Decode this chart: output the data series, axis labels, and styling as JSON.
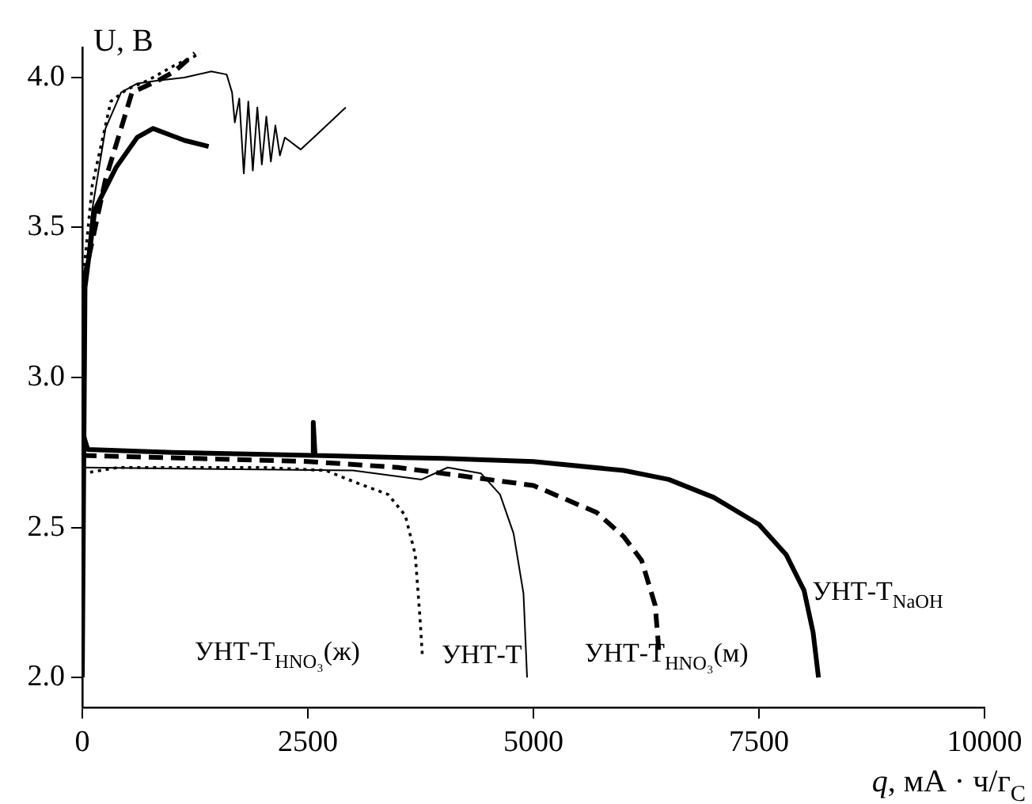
{
  "chart_data": {
    "type": "line",
    "xlabel": "q, мА · ч/г$_{C}$",
    "ylabel": "U, В",
    "xlim": [
      0,
      10000
    ],
    "xticks": [
      0,
      2500,
      5000,
      7500,
      10000
    ],
    "ylim": [
      1.9,
      4.1
    ],
    "yticks": [
      {
        "value": 2.0,
        "label": "2.0"
      },
      {
        "value": 2.5,
        "label": "2.5"
      },
      {
        "value": 3.0,
        "label": "3.0"
      },
      {
        "value": 3.5,
        "label": "3.5"
      },
      {
        "value": 4.0,
        "label": "4.0"
      }
    ],
    "grid": false,
    "legend": false,
    "marker": "none",
    "series": [
      {
        "name": "УНТ-Т$_{NaOH}$",
        "color": "#000000",
        "line_style": "solid",
        "x": [
          0,
          60,
          1000,
          2550,
          2560,
          2580,
          4000,
          5000,
          6000,
          6500,
          7000,
          7500,
          7800,
          8000,
          8100,
          8160
        ],
        "values": [
          2.82,
          2.76,
          2.75,
          2.74,
          2.85,
          2.74,
          2.73,
          2.72,
          2.69,
          2.66,
          2.6,
          2.51,
          2.41,
          2.29,
          2.15,
          2.0
        ]
      },
      {
        "name": "УНТ-Т$_{HNO₃}$(м)",
        "color": "#000000",
        "line_style": "dashed",
        "x": [
          0,
          2500,
          3500,
          4500,
          5000,
          5700,
          6000,
          6200,
          6350,
          6380,
          6390
        ],
        "values": [
          2.74,
          2.72,
          2.7,
          2.66,
          2.64,
          2.55,
          2.47,
          2.39,
          2.24,
          2.13,
          2.08
        ]
      },
      {
        "name": "УНТ-Т",
        "color": "#000000",
        "line_style": "solid",
        "x": [
          0,
          3000,
          3760,
          4050,
          4420,
          4630,
          4780,
          4890,
          4930
        ],
        "values": [
          2.7,
          2.69,
          2.66,
          2.7,
          2.68,
          2.61,
          2.48,
          2.28,
          2.0
        ]
      },
      {
        "name": "УНТ-Т$_{HNO₃}$(ж)",
        "color": "#000000",
        "line_style": "dotted",
        "x": [
          0,
          400,
          2000,
          2700,
          3030,
          3390,
          3580,
          3690,
          3740,
          3770
        ],
        "values": [
          2.68,
          2.7,
          2.7,
          2.69,
          2.65,
          2.61,
          2.54,
          2.41,
          2.21,
          2.07
        ]
      },
      {
        "color": "#000000",
        "line_style": "solid",
        "x": [
          0,
          30,
          140,
          374,
          608,
          784,
          960,
          1135,
          1400
        ],
        "values": [
          2.0,
          3.3,
          3.56,
          3.7,
          3.8,
          3.83,
          3.81,
          3.79,
          3.77
        ]
      },
      {
        "color": "#000000",
        "line_style": "dashed",
        "x": [
          0,
          0,
          257,
          430,
          550,
          840,
          1020,
          1250
        ],
        "values": [
          2.0,
          3.3,
          3.66,
          3.83,
          3.95,
          3.99,
          4.02,
          4.08
        ]
      },
      {
        "color": "#000000",
        "line_style": "solid",
        "x": [
          0,
          20,
          110,
          257,
          430,
          610,
          840,
          1130,
          1430,
          1600,
          1660,
          1690,
          1740,
          1790,
          1840,
          1890,
          1940,
          1990,
          2040,
          2090,
          2140,
          2190,
          2245,
          2420,
          2600,
          2920
        ],
        "values": [
          2.0,
          3.3,
          3.56,
          3.83,
          3.95,
          3.98,
          3.99,
          4.0,
          4.02,
          4.01,
          3.95,
          3.85,
          3.93,
          3.68,
          3.92,
          3.69,
          3.9,
          3.71,
          3.87,
          3.72,
          3.84,
          3.74,
          3.8,
          3.76,
          3.81,
          3.9
        ]
      },
      {
        "color": "#000000",
        "line_style": "dotted",
        "x": [
          0,
          0,
          110,
          316,
          490,
          725,
          1020,
          1310
        ],
        "values": [
          2.0,
          3.3,
          3.64,
          3.92,
          3.96,
          3.99,
          4.04,
          4.08
        ]
      }
    ]
  }
}
